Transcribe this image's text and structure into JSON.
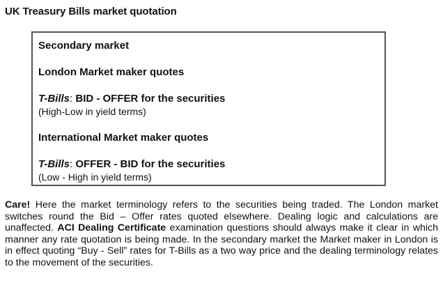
{
  "title": "UK Treasury Bills market quotation",
  "box": {
    "secondary_market": "Secondary market",
    "london_heading": "London Market maker quotes",
    "london_quote": {
      "prefix": "T-Bills",
      "colon": ":",
      "text": " BID - OFFER for the securities"
    },
    "london_note": "(High-Low in yield terms)",
    "international_heading": "International Market maker quotes",
    "international_quote": {
      "prefix": "T-Bills",
      "colon": ":",
      "text": " OFFER - BID for the securities"
    },
    "international_note": "(Low - High in yield terms)"
  },
  "paragraph": {
    "care_label": "Care!",
    "part1": " Here the market terminology refers to the securities being traded. The London market switches round the Bid – Offer rates quoted elsewhere. Dealing logic and calculations are unaffected. ",
    "aci_label": "ACI Dealing Certificate",
    "part2": " examination questions should always make it clear in which manner any rate quotation is being made. In the secondary market the Market maker in London is in effect quoting “Buy - Sell” rates for T-Bills as a two way price and the dealing terminology relates to the movement of the securities."
  }
}
